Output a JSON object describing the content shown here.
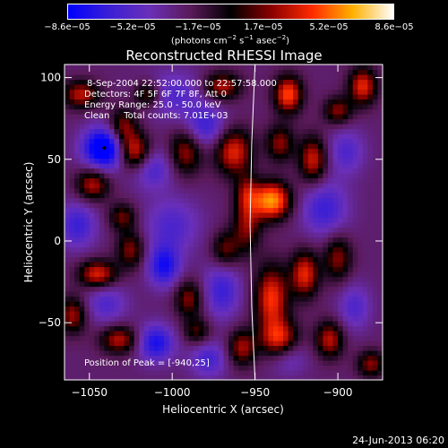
{
  "colorbar": {
    "ticks": [
      "−8.6e−05",
      "−5.2e−05",
      "−1.7e−05",
      "1.7e−05",
      "5.2e−05",
      "8.6e−05"
    ],
    "unit_prefix": "(photons cm",
    "unit_exp1": "−2",
    "unit_mid": " s",
    "unit_exp2": "−1",
    "unit_mid2": " asec",
    "unit_exp3": "−2",
    "unit_suffix": ")",
    "colors": [
      "#0000ff",
      "#3a1fd6",
      "#6a2fb8",
      "#5a1a5a",
      "#000000",
      "#8a0000",
      "#ff2a00",
      "#ffb000",
      "#ffffff"
    ]
  },
  "title": "Reconstructed RHESSI Image",
  "info": {
    "line1": "8-Sep-2004 22:52:00.000 to 22:57:58.000",
    "line2": "Detectors: 4F 5F 6F 7F 8F, Att 0",
    "line3": "Energy Range: 25.0 - 50.0 keV",
    "line4": "Clean     Total counts: 7.01E+03"
  },
  "peak_label": "Position of Peak = [-940,25]",
  "footer_date": "24-Jun-2013 06:20",
  "chart_data": {
    "type": "heatmap",
    "title": "Reconstructed RHESSI Image",
    "xlabel": "Heliocentric X (arcsec)",
    "ylabel": "Heliocentric Y (arcsec)",
    "xlim": [
      -1065,
      -873
    ],
    "ylim": [
      -85,
      108
    ],
    "x_ticks": [
      -1050,
      -1000,
      -950,
      -900
    ],
    "y_ticks": [
      -50,
      0,
      50,
      100
    ],
    "x_tick_labels": [
      "−1050",
      "−1000",
      "−950",
      "−900"
    ],
    "y_tick_labels": [
      "−50",
      "0",
      "50",
      "100"
    ],
    "value_range": [
      -8.6e-05,
      8.6e-05
    ],
    "peak_position": [
      -940,
      25
    ],
    "min_marker": [
      -1041,
      57
    ],
    "limb": [
      [
        -950,
        108
      ],
      [
        -952,
        60
      ],
      [
        -953,
        10
      ],
      [
        -952,
        -40
      ],
      [
        -950,
        -85
      ]
    ],
    "blobs": [
      {
        "x": -1041,
        "y": 57,
        "v": -0.95,
        "sx": 9,
        "sy": 9
      },
      {
        "x": -1000,
        "y": 90,
        "v": -0.35,
        "sx": 14,
        "sy": 10
      },
      {
        "x": -1057,
        "y": 10,
        "v": -0.45,
        "sx": 8,
        "sy": 10
      },
      {
        "x": -1012,
        "y": 45,
        "v": -0.4,
        "sx": 9,
        "sy": 9
      },
      {
        "x": -980,
        "y": 70,
        "v": -0.45,
        "sx": 9,
        "sy": 9
      },
      {
        "x": -1000,
        "y": 10,
        "v": -0.35,
        "sx": 12,
        "sy": 12
      },
      {
        "x": -1005,
        "y": -15,
        "v": -0.6,
        "sx": 7,
        "sy": 9
      },
      {
        "x": -1010,
        "y": -62,
        "v": -0.6,
        "sx": 8,
        "sy": 8
      },
      {
        "x": -970,
        "y": -30,
        "v": -0.45,
        "sx": 8,
        "sy": 12
      },
      {
        "x": -978,
        "y": -72,
        "v": -0.4,
        "sx": 8,
        "sy": 8
      },
      {
        "x": -1040,
        "y": -38,
        "v": -0.35,
        "sx": 9,
        "sy": 9
      },
      {
        "x": -908,
        "y": 20,
        "v": -0.45,
        "sx": 10,
        "sy": 12
      },
      {
        "x": -895,
        "y": 55,
        "v": -0.35,
        "sx": 8,
        "sy": 10
      },
      {
        "x": -890,
        "y": -40,
        "v": -0.35,
        "sx": 7,
        "sy": 10
      },
      {
        "x": -930,
        "y": -70,
        "v": -0.3,
        "sx": 8,
        "sy": 8
      },
      {
        "x": -940,
        "y": 25,
        "v": 1.0,
        "sx": 8,
        "sy": 8
      },
      {
        "x": -1055,
        "y": 90,
        "v": 0.6,
        "sx": 8,
        "sy": 6
      },
      {
        "x": -1048,
        "y": 35,
        "v": 0.6,
        "sx": 7,
        "sy": 7
      },
      {
        "x": -1030,
        "y": 70,
        "v": 0.55,
        "sx": 6,
        "sy": 8
      },
      {
        "x": -1023,
        "y": 55,
        "v": 0.75,
        "sx": 7,
        "sy": 8
      },
      {
        "x": -1015,
        "y": 90,
        "v": 0.55,
        "sx": 6,
        "sy": 6
      },
      {
        "x": -992,
        "y": 55,
        "v": 0.55,
        "sx": 7,
        "sy": 10
      },
      {
        "x": -963,
        "y": 55,
        "v": 0.7,
        "sx": 8,
        "sy": 10
      },
      {
        "x": -970,
        "y": 95,
        "v": 0.6,
        "sx": 8,
        "sy": 6
      },
      {
        "x": -955,
        "y": 10,
        "v": 0.5,
        "sx": 6,
        "sy": 12
      },
      {
        "x": -930,
        "y": 90,
        "v": 0.8,
        "sx": 6,
        "sy": 8
      },
      {
        "x": -935,
        "y": 60,
        "v": 0.5,
        "sx": 6,
        "sy": 8
      },
      {
        "x": -915,
        "y": 50,
        "v": 0.65,
        "sx": 6,
        "sy": 10
      },
      {
        "x": -885,
        "y": 95,
        "v": 0.7,
        "sx": 6,
        "sy": 8
      },
      {
        "x": -900,
        "y": 80,
        "v": 0.5,
        "sx": 6,
        "sy": 6
      },
      {
        "x": -900,
        "y": -10,
        "v": 0.5,
        "sx": 6,
        "sy": 10
      },
      {
        "x": -1045,
        "y": -20,
        "v": 0.7,
        "sx": 8,
        "sy": 6
      },
      {
        "x": -1060,
        "y": -45,
        "v": 0.55,
        "sx": 6,
        "sy": 8
      },
      {
        "x": -1032,
        "y": -60,
        "v": 0.6,
        "sx": 8,
        "sy": 6
      },
      {
        "x": -1025,
        "y": -5,
        "v": 0.5,
        "sx": 6,
        "sy": 8
      },
      {
        "x": -1030,
        "y": 15,
        "v": 0.45,
        "sx": 6,
        "sy": 6
      },
      {
        "x": -990,
        "y": -35,
        "v": 0.5,
        "sx": 6,
        "sy": 8
      },
      {
        "x": -968,
        "y": -5,
        "v": 0.45,
        "sx": 6,
        "sy": 8
      },
      {
        "x": -985,
        "y": -55,
        "v": 0.4,
        "sx": 6,
        "sy": 6
      },
      {
        "x": -940,
        "y": -35,
        "v": 0.75,
        "sx": 7,
        "sy": 14
      },
      {
        "x": -920,
        "y": -20,
        "v": 0.7,
        "sx": 6,
        "sy": 10
      },
      {
        "x": -935,
        "y": -60,
        "v": 0.7,
        "sx": 8,
        "sy": 8
      },
      {
        "x": -905,
        "y": -60,
        "v": 0.6,
        "sx": 6,
        "sy": 8
      },
      {
        "x": -880,
        "y": -75,
        "v": 0.5,
        "sx": 6,
        "sy": 6
      },
      {
        "x": -958,
        "y": -65,
        "v": 0.55,
        "sx": 6,
        "sy": 8
      },
      {
        "x": -955,
        "y": 30,
        "v": 0.4,
        "sx": 5,
        "sy": 8
      }
    ]
  }
}
